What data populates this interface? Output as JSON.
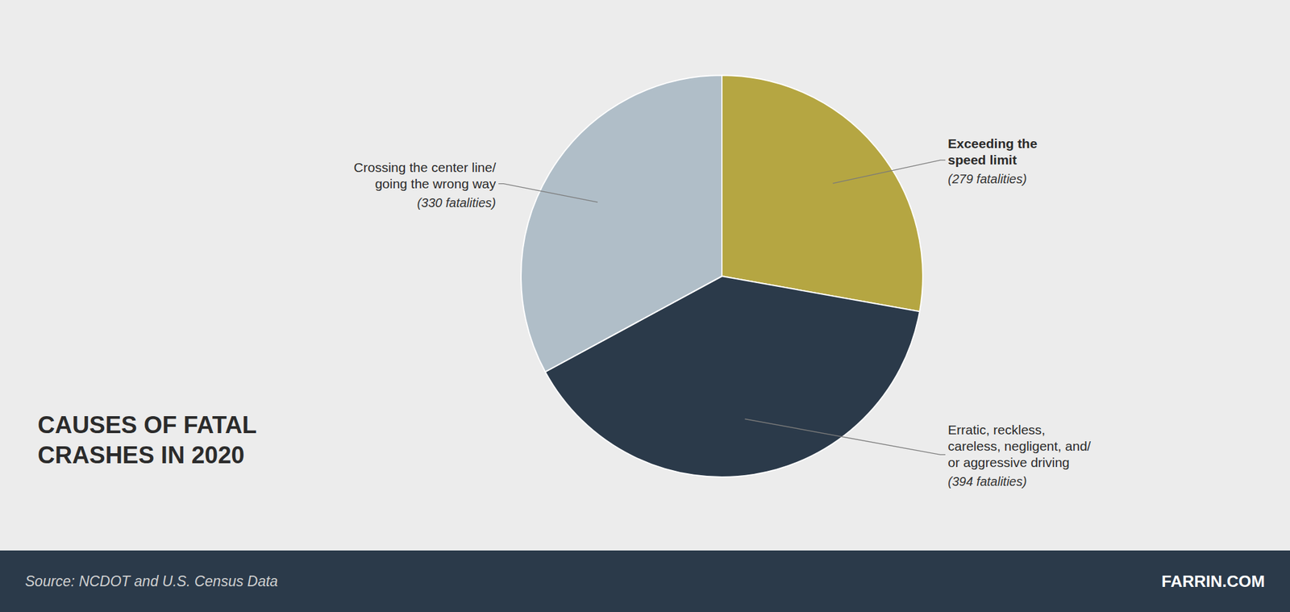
{
  "chart_data": {
    "type": "pie",
    "title": "CAUSES OF FATAL\nCRASHES IN 2020",
    "categories": [
      "Exceeding the\nspeed limit",
      "Erratic, reckless,\ncareless, negligent, and/\nor aggressive driving",
      "Crossing the center line/\ngoing the wrong way"
    ],
    "values": [
      279,
      394,
      330
    ],
    "value_labels": [
      "(279 fatalities)",
      "(394 fatalities)",
      "(330 fatalities)"
    ],
    "colors": [
      "#b5a642",
      "#2b3a4a",
      "#b0bec8"
    ],
    "data_labels": true,
    "annotations": [
      "Source: NCDOT and U.S. Census Data",
      "FARRIN.COM"
    ]
  }
}
